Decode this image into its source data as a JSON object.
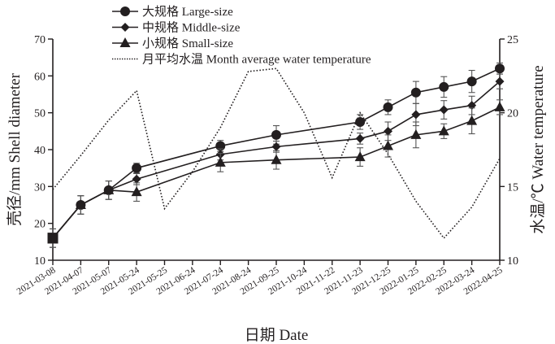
{
  "chart_data": {
    "type": "line",
    "title": "",
    "xlabel": "日期 Date",
    "ylabel": "壳径/mm Shell diameter",
    "y2label": "水温/℃ Water temperature",
    "ylim": [
      10,
      70
    ],
    "y2lim": [
      10,
      25
    ],
    "yticks": [
      "10",
      "20",
      "30",
      "40",
      "50",
      "60",
      "70"
    ],
    "y2ticks": [
      "10",
      "15",
      "20",
      "25"
    ],
    "grid": false,
    "legend_position": "top-left",
    "categories": [
      "2021-03-08",
      "2021-04-07",
      "2021-05-07",
      "2021-05-24",
      "2021-05-25",
      "2021-06-24",
      "2021-07-24",
      "2021-08-24",
      "2021-09-25",
      "2021-10-24",
      "2021-11-22",
      "2021-11-23",
      "2021-12-25",
      "2022-01-25",
      "2022-02-25",
      "2022-03-24",
      "2022-04-25"
    ],
    "series": [
      {
        "name": "大规格 Large-size",
        "marker": "circle",
        "axis": "left",
        "values": [
          16,
          25,
          29,
          35,
          null,
          null,
          41,
          null,
          44,
          null,
          null,
          47.5,
          51.5,
          55.5,
          57,
          58.5,
          62
        ],
        "errors": [
          2.5,
          2.5,
          2.5,
          1.3,
          null,
          null,
          1.5,
          null,
          2.5,
          null,
          null,
          2,
          2,
          3,
          2.8,
          3,
          1.5
        ]
      },
      {
        "name": "中规格 Middle-size",
        "marker": "diamond",
        "axis": "left",
        "values": [
          16,
          25,
          29,
          32,
          null,
          null,
          38.7,
          null,
          40.8,
          null,
          null,
          43,
          45,
          49.5,
          50.8,
          52,
          58.5
        ],
        "errors": [
          2.5,
          2.5,
          2.5,
          1.5,
          null,
          null,
          1.5,
          null,
          1.5,
          null,
          null,
          1.5,
          2.5,
          3,
          2.5,
          2.5,
          2
        ]
      },
      {
        "name": "小规格 Small-size",
        "marker": "triangle",
        "axis": "left",
        "values": [
          16,
          25,
          29,
          28.5,
          null,
          null,
          36.5,
          null,
          37.2,
          null,
          null,
          38,
          41,
          44,
          45,
          47.8,
          51.5
        ],
        "errors": [
          2.5,
          2.5,
          2.5,
          2.5,
          null,
          null,
          2.5,
          null,
          2.5,
          null,
          null,
          2.5,
          3,
          3.5,
          2,
          3.5,
          2
        ]
      },
      {
        "name": "月平均水温 Month average water temperature",
        "marker": "none",
        "axis": "right",
        "style": "dotted",
        "values": [
          14.8,
          17.1,
          19.5,
          21.5,
          13.5,
          16.0,
          19.0,
          22.8,
          23.0,
          20.0,
          15.6,
          20.0,
          17.2,
          14.0,
          11.5,
          13.6,
          16.9
        ]
      }
    ]
  }
}
